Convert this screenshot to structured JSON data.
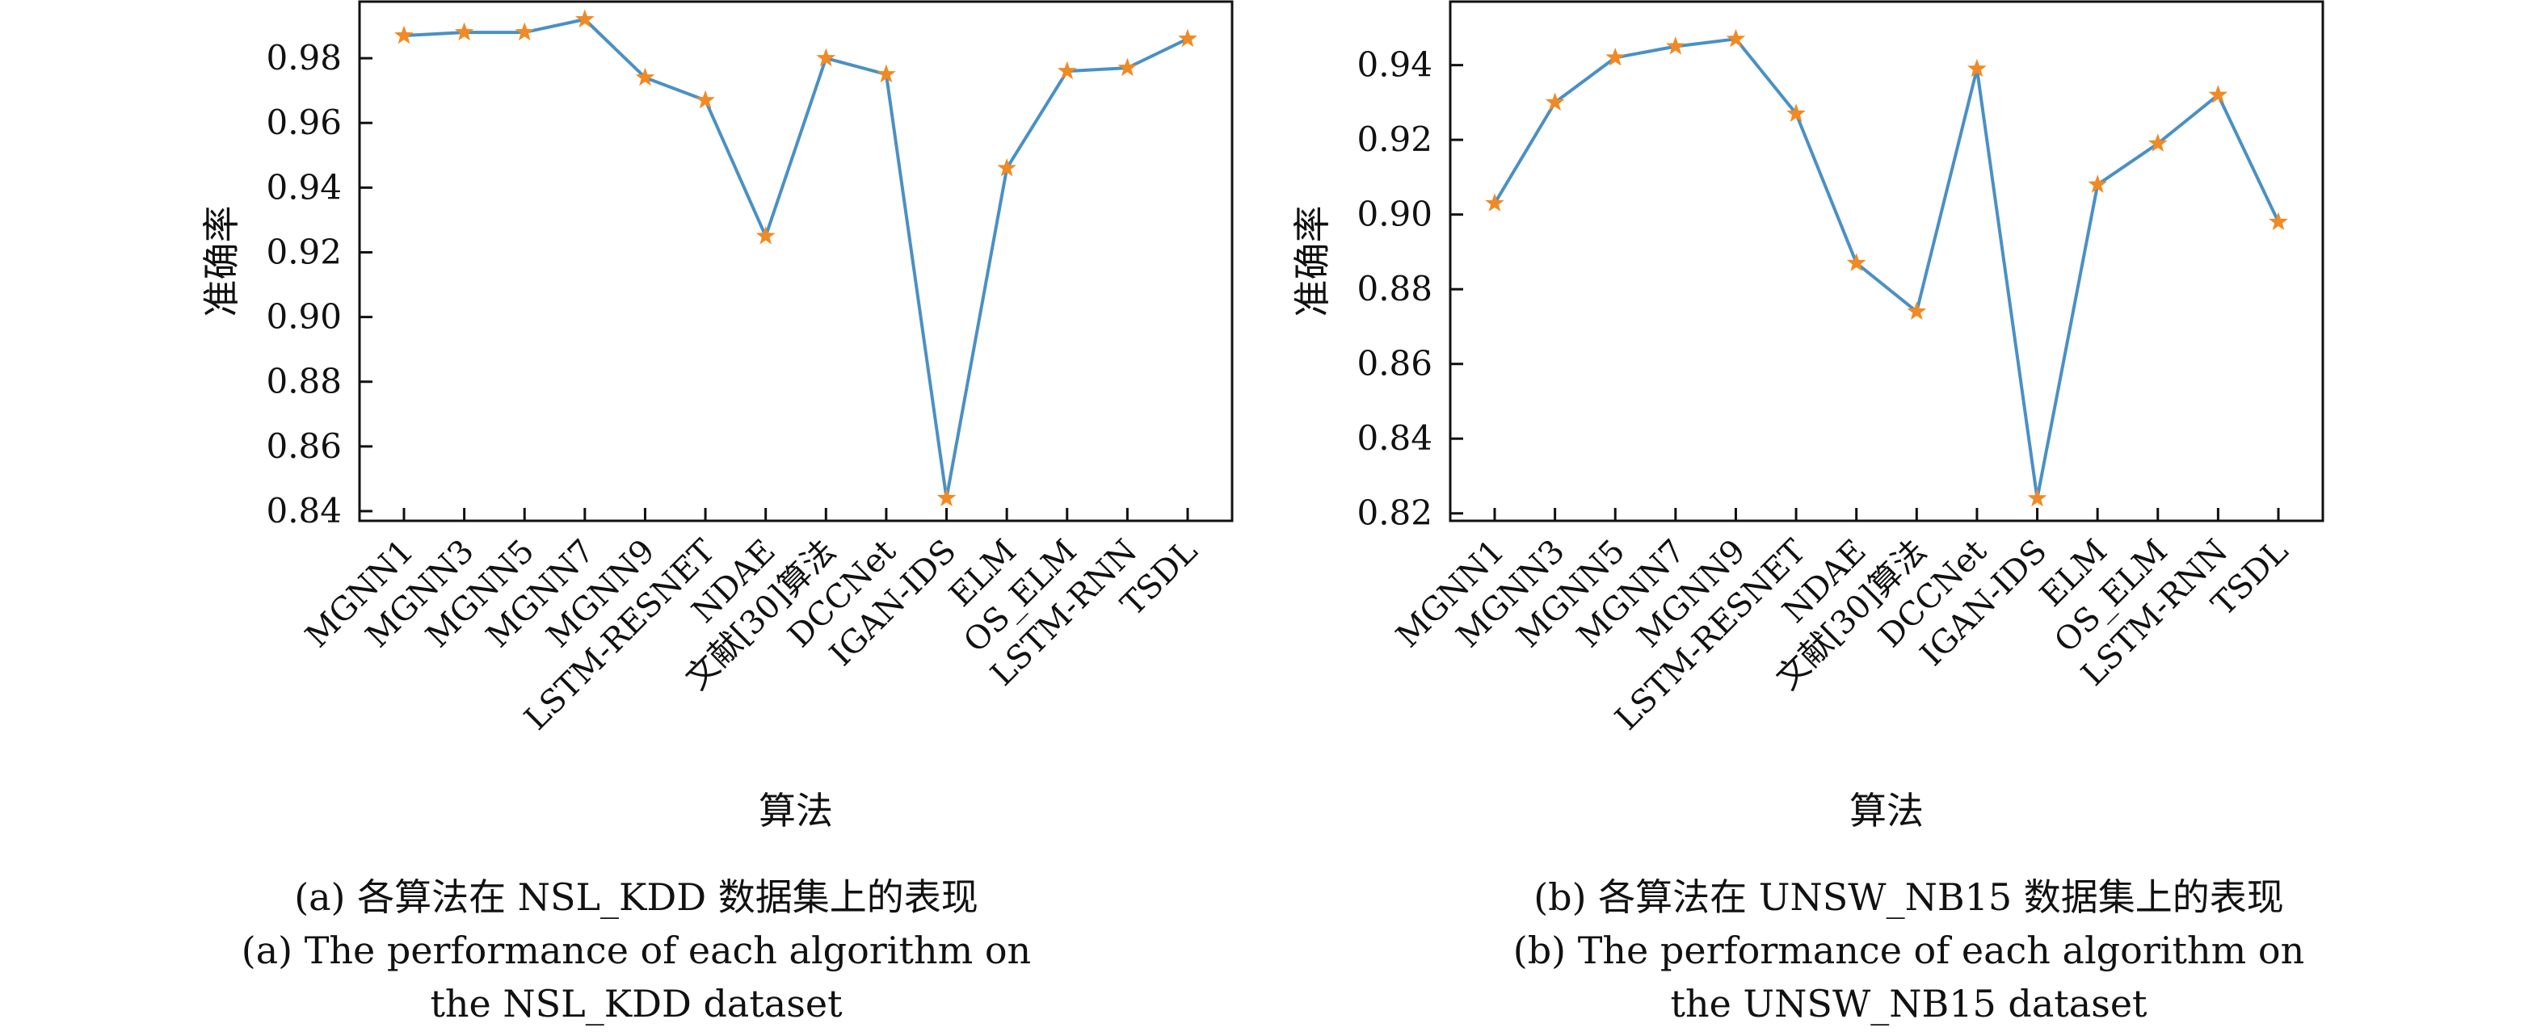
{
  "chart_data": [
    {
      "type": "line",
      "categories": [
        "MGNN1",
        "MGNN3",
        "MGNN5",
        "MGNN7",
        "MGNN9",
        "LSTM-RESNET",
        "NDAE",
        "文献[30]算法",
        "DCCNet",
        "IGAN-IDS",
        "ELM",
        "OS_ELM",
        "LSTM-RNN",
        "TSDL"
      ],
      "values": [
        0.987,
        0.988,
        0.988,
        0.992,
        0.974,
        0.967,
        0.925,
        0.98,
        0.975,
        0.844,
        0.946,
        0.976,
        0.977,
        0.986
      ],
      "title": "",
      "xlabel": "算法",
      "ylabel": "准确率",
      "ylim": [
        0.837,
        0.9975
      ],
      "yticks": [
        "0.84",
        "0.86",
        "0.88",
        "0.90",
        "0.92",
        "0.94",
        "0.96",
        "0.98"
      ],
      "grid": false,
      "line_color": "#4a90c4",
      "marker": "star",
      "marker_color": "#f08a24",
      "caption_zh": "(a) 各算法在 NSL_KDD 数据集上的表现",
      "caption_en_1": "(a) The performance of each algorithm on",
      "caption_en_2": "the NSL_KDD dataset"
    },
    {
      "type": "line",
      "categories": [
        "MGNN1",
        "MGNN3",
        "MGNN5",
        "MGNN7",
        "MGNN9",
        "LSTM-RESNET",
        "NDAE",
        "文献[30]算法",
        "DCCNet",
        "IGAN-IDS",
        "ELM",
        "OS_ELM",
        "LSTM-RNN",
        "TSDL"
      ],
      "values": [
        0.903,
        0.93,
        0.942,
        0.945,
        0.947,
        0.927,
        0.887,
        0.874,
        0.939,
        0.824,
        0.908,
        0.919,
        0.932,
        0.898
      ],
      "title": "",
      "xlabel": "算法",
      "ylabel": "准确率",
      "ylim": [
        0.818,
        0.957
      ],
      "yticks": [
        "0.82",
        "0.84",
        "0.86",
        "0.88",
        "0.90",
        "0.92",
        "0.94"
      ],
      "grid": false,
      "line_color": "#4a90c4",
      "marker": "star",
      "marker_color": "#f08a24",
      "caption_zh": "(b) 各算法在 UNSW_NB15 数据集上的表现",
      "caption_en_1": "(b) The performance of each algorithm on",
      "caption_en_2": "the UNSW_NB15 dataset"
    }
  ]
}
